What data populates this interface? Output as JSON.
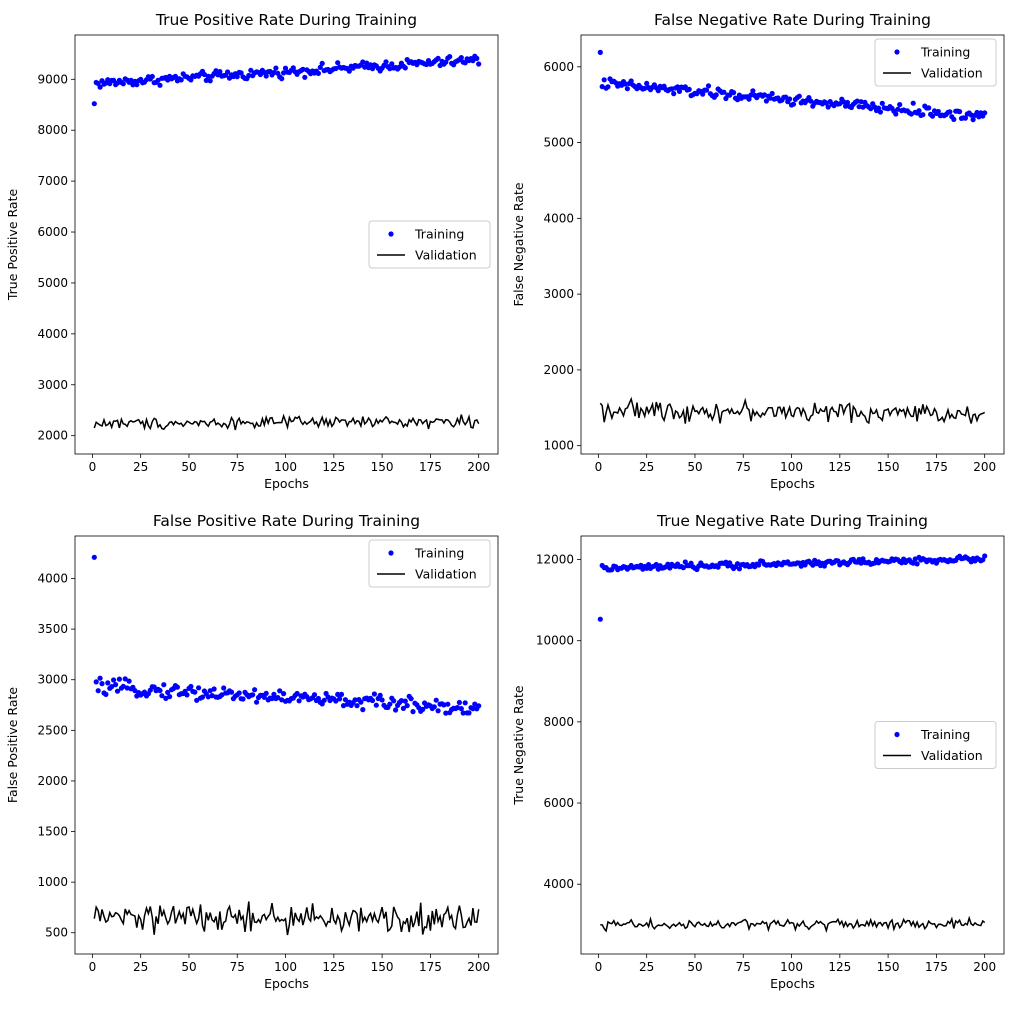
{
  "chart_data": [
    {
      "type": "scatter",
      "title": "True Positive Rate During Training",
      "xlabel": "Epochs",
      "ylabel": "True Positive Rate",
      "xlim": [
        -9,
        210
      ],
      "ylim": [
        1640,
        9870
      ],
      "xticks": [
        0,
        25,
        50,
        75,
        100,
        125,
        150,
        175,
        200
      ],
      "yticks": [
        2000,
        3000,
        4000,
        5000,
        6000,
        7000,
        8000,
        9000
      ],
      "legend": "center-right",
      "grid": false,
      "series": [
        {
          "name": "Training",
          "kind": "points",
          "color": "#0000ff",
          "first": 8520,
          "start": 8920,
          "end": 9380,
          "noise": 75
        },
        {
          "name": "Validation",
          "kind": "line",
          "color": "#000000",
          "first": 2150,
          "start": 2240,
          "end": 2280,
          "noise": 85
        }
      ]
    },
    {
      "type": "scatter",
      "title": "False Negative Rate During Training",
      "xlabel": "Epochs",
      "ylabel": "False Negative Rate",
      "xlim": [
        -9,
        210
      ],
      "ylim": [
        890,
        6420
      ],
      "xticks": [
        0,
        25,
        50,
        75,
        100,
        125,
        150,
        175,
        200
      ],
      "yticks": [
        1000,
        2000,
        3000,
        4000,
        5000,
        6000
      ],
      "legend": "top-right",
      "grid": false,
      "series": [
        {
          "name": "Training",
          "kind": "points",
          "color": "#0000ff",
          "first": 6190,
          "start": 5780,
          "end": 5340,
          "noise": 55
        },
        {
          "name": "Validation",
          "kind": "line",
          "color": "#000000",
          "first": 1560,
          "start": 1470,
          "end": 1420,
          "noise": 95
        }
      ]
    },
    {
      "type": "scatter",
      "title": "False Positive Rate During Training",
      "xlabel": "Epochs",
      "ylabel": "False Positive Rate",
      "xlim": [
        -9,
        210
      ],
      "ylim": [
        290,
        4420
      ],
      "xticks": [
        0,
        25,
        50,
        75,
        100,
        125,
        150,
        175,
        200
      ],
      "yticks": [
        500,
        1000,
        1500,
        2000,
        2500,
        3000,
        3500,
        4000
      ],
      "legend": "top-right",
      "grid": false,
      "series": [
        {
          "name": "Training",
          "kind": "points",
          "color": "#0000ff",
          "first": 4210,
          "start": 2930,
          "end": 2720,
          "noise": 55
        },
        {
          "name": "Validation",
          "kind": "line",
          "color": "#000000",
          "first": 640,
          "start": 650,
          "end": 630,
          "noise": 110
        }
      ]
    },
    {
      "type": "scatter",
      "title": "True Negative Rate During Training",
      "xlabel": "Epochs",
      "ylabel": "True Negative Rate",
      "xlim": [
        -9,
        210
      ],
      "ylim": [
        2280,
        12580
      ],
      "xticks": [
        0,
        25,
        50,
        75,
        100,
        125,
        150,
        175,
        200
      ],
      "yticks": [
        4000,
        6000,
        8000,
        10000,
        12000
      ],
      "legend": "center-right",
      "grid": false,
      "series": [
        {
          "name": "Training",
          "kind": "points",
          "color": "#0000ff",
          "first": 10530,
          "start": 11780,
          "end": 12020,
          "noise": 60
        },
        {
          "name": "Validation",
          "kind": "line",
          "color": "#000000",
          "first": 3000,
          "start": 3000,
          "end": 3020,
          "noise": 95
        }
      ]
    }
  ]
}
